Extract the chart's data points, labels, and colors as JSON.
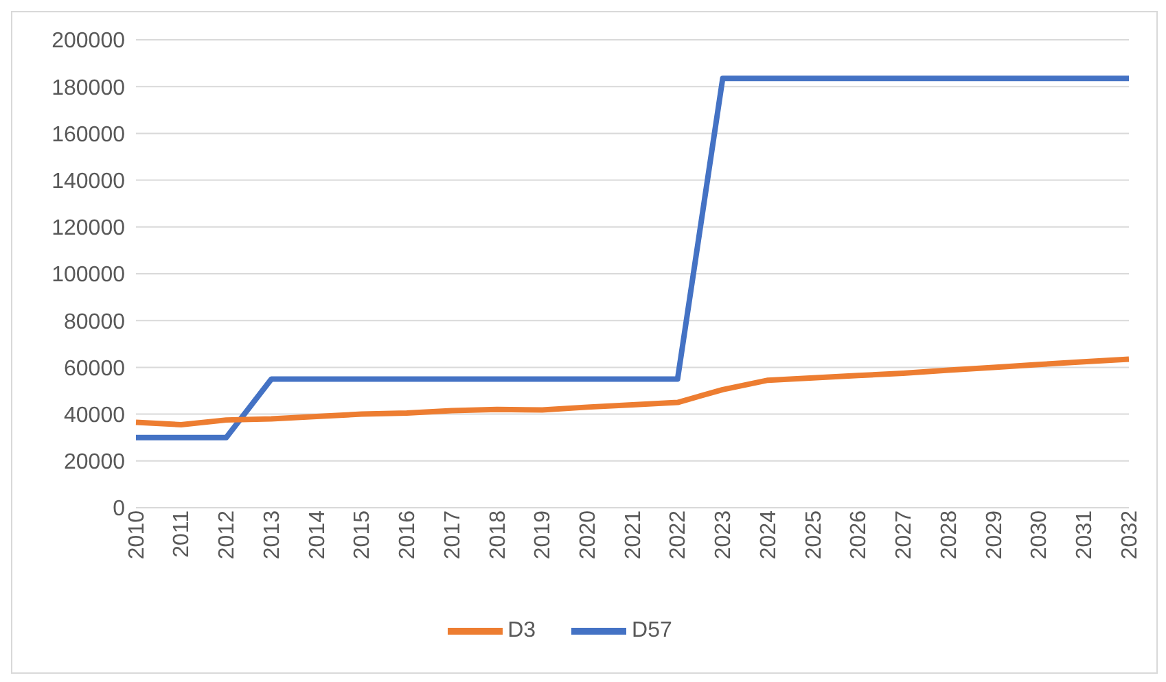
{
  "chart_data": {
    "type": "line",
    "categories": [
      "2010",
      "2011",
      "2012",
      "2013",
      "2014",
      "2015",
      "2016",
      "2017",
      "2018",
      "2019",
      "2020",
      "2021",
      "2022",
      "2023",
      "2024",
      "2025",
      "2026",
      "2027",
      "2028",
      "2029",
      "2030",
      "2031",
      "2032"
    ],
    "series": [
      {
        "name": "D57",
        "color": "#4472c4",
        "values": [
          30000,
          30000,
          30000,
          55000,
          55000,
          55000,
          55000,
          55000,
          55000,
          55000,
          55000,
          55000,
          55000,
          183500,
          183500,
          183500,
          183500,
          183500,
          183500,
          183500,
          183500,
          183500,
          183500
        ]
      },
      {
        "name": "D3",
        "color": "#ed7d31",
        "values": [
          36500,
          35500,
          37500,
          38000,
          39000,
          40000,
          40500,
          41500,
          42000,
          41800,
          43000,
          44000,
          45000,
          50500,
          54500,
          55500,
          56500,
          57500,
          58800,
          60000,
          61200,
          62400,
          63500
        ]
      }
    ],
    "ylim": [
      0,
      200000
    ],
    "yticks": [
      0,
      20000,
      40000,
      60000,
      80000,
      100000,
      120000,
      140000,
      160000,
      180000,
      200000
    ],
    "grid": "y",
    "legend": "bottom",
    "marker": "none",
    "line_style": "solid"
  }
}
